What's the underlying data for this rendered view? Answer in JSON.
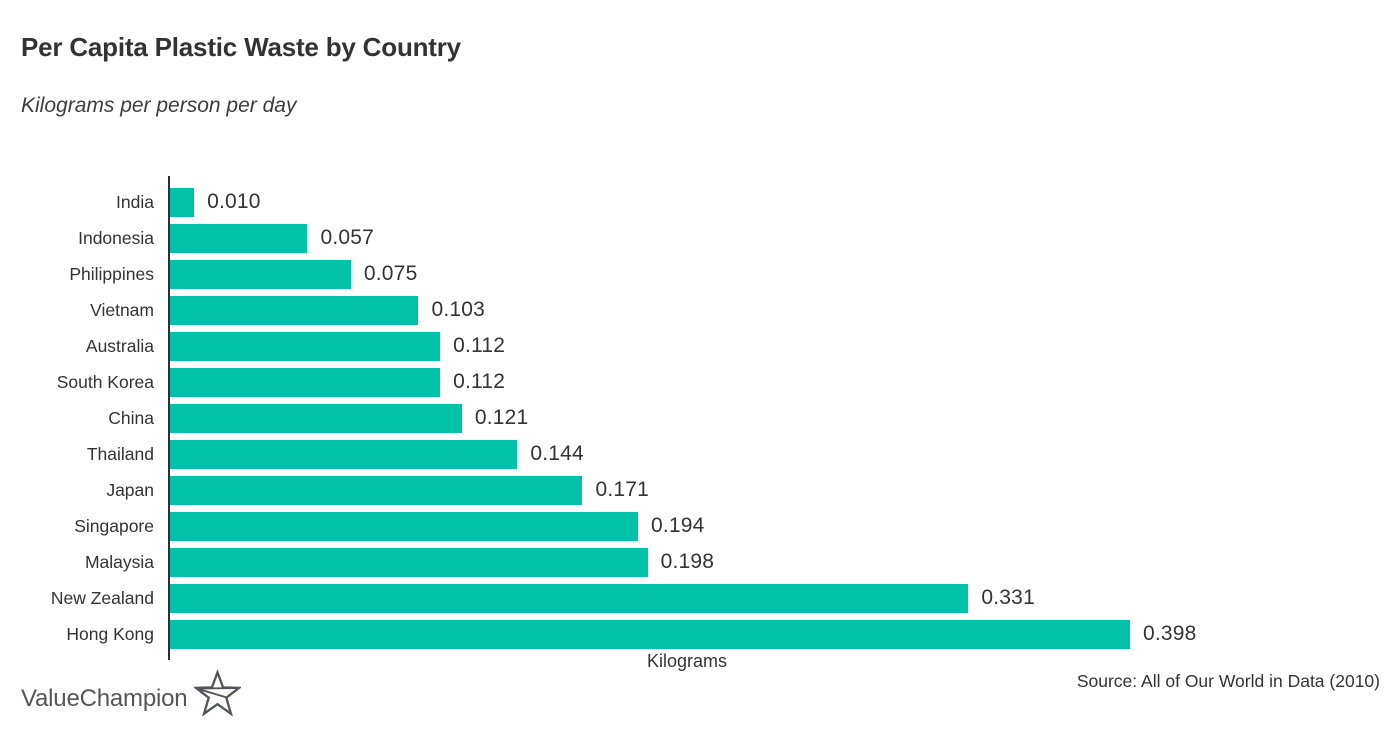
{
  "header": {
    "title": "Per Capita Plastic Waste by Country",
    "subtitle": "Kilograms per person per day"
  },
  "chart_data": {
    "type": "bar",
    "orientation": "horizontal",
    "title": "Per Capita Plastic Waste by Country",
    "subtitle": "Kilograms per person per day",
    "xlabel": "Kilograms",
    "categories": [
      "India",
      "Indonesia",
      "Philippines",
      "Vietnam",
      "Australia",
      "South Korea",
      "China",
      "Thailand",
      "Japan",
      "Singapore",
      "Malaysia",
      "New Zealand",
      "Hong Kong"
    ],
    "values": [
      0.01,
      0.057,
      0.075,
      0.103,
      0.112,
      0.112,
      0.121,
      0.144,
      0.171,
      0.194,
      0.198,
      0.331,
      0.398
    ],
    "value_labels": [
      "0.010",
      "0.057",
      "0.075",
      "0.103",
      "0.112",
      "0.112",
      "0.121",
      "0.144",
      "0.171",
      "0.194",
      "0.198",
      "0.331",
      "0.398"
    ],
    "xlim": [
      0,
      0.398
    ],
    "grid": false,
    "legend": "none",
    "bar_color": "#00C2A8",
    "axis_color": "#2e2e2e",
    "label_color": "#333333"
  },
  "footer": {
    "source": "Source: All of Our World in Data (2010)",
    "logo_text": "ValueChampion",
    "logo_color": "#54565B",
    "logo_icon": "star-outline-icon"
  }
}
